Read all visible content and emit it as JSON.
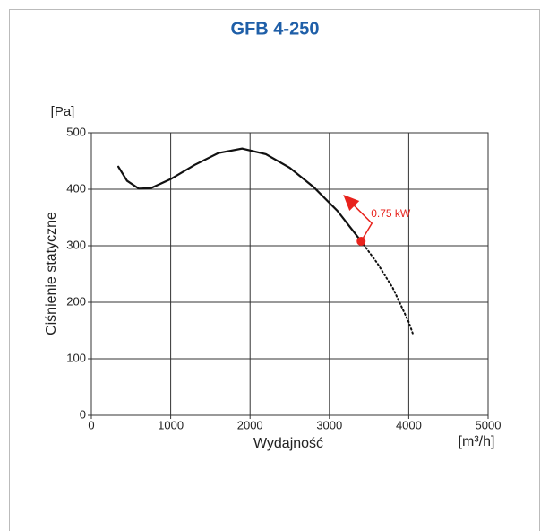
{
  "chart_data": {
    "type": "line",
    "title": "GFB 4-250",
    "y_unit": "[Pa]",
    "y_label": "Ciśnienie statyczne",
    "x_label": "Wydajność",
    "x_unit": "[m³/h]",
    "xlim": [
      0,
      5000
    ],
    "ylim": [
      0,
      500
    ],
    "xticks": [
      0,
      1000,
      2000,
      3000,
      4000,
      5000
    ],
    "yticks": [
      0,
      100,
      200,
      300,
      400,
      500
    ],
    "grid": true,
    "series": [
      {
        "style": "solid",
        "color": "#111111",
        "x": [
          340,
          450,
          600,
          750,
          1000,
          1300,
          1600,
          1900,
          2200,
          2500,
          2800,
          3100,
          3400
        ],
        "values": [
          440,
          415,
          401,
          402,
          418,
          443,
          464,
          472,
          462,
          438,
          404,
          362,
          308
        ]
      },
      {
        "style": "dotted",
        "color": "#111111",
        "x": [
          3400,
          3600,
          3800,
          4000,
          4050
        ],
        "values": [
          308,
          270,
          225,
          165,
          145
        ]
      }
    ],
    "point": {
      "x": 3400,
      "y": 308,
      "color": "#e8221c",
      "label": "0.75 kW"
    }
  }
}
